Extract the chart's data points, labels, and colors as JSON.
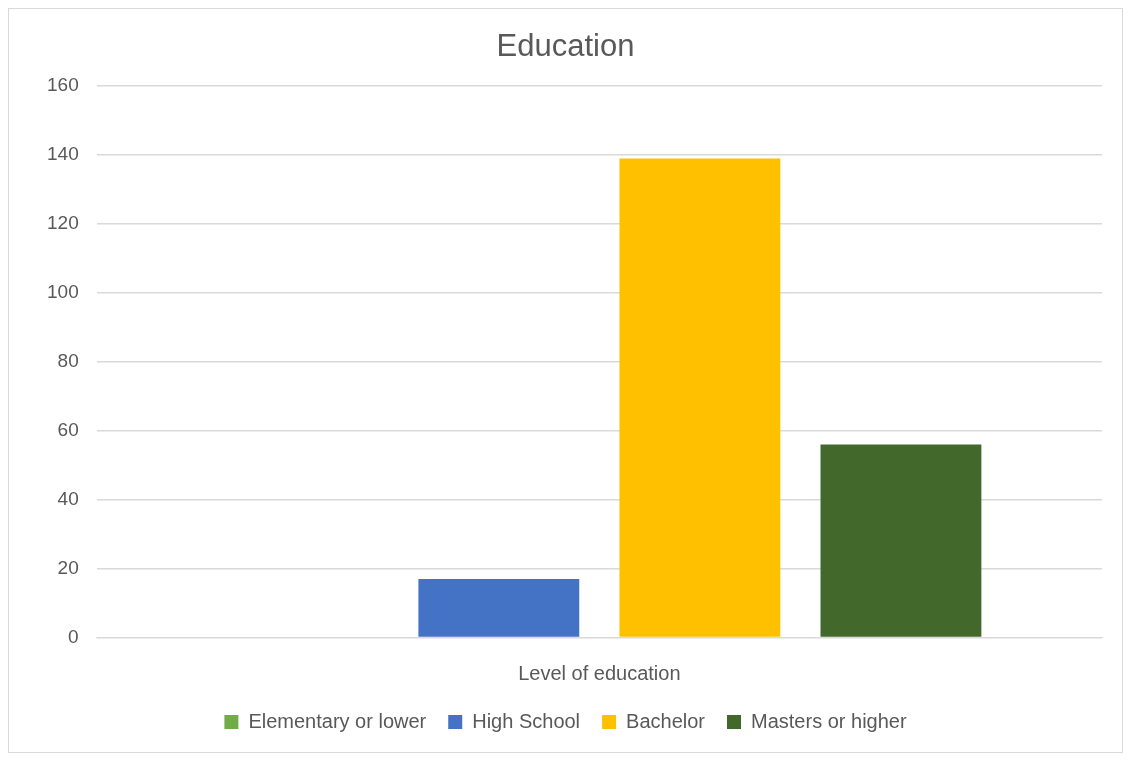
{
  "chart_data": {
    "type": "bar",
    "title": "Education",
    "xlabel": "Level of education",
    "categories": [
      null
    ],
    "series": [
      {
        "name": "Elementary or lower",
        "color": "#70ad47",
        "values": [
          0
        ]
      },
      {
        "name": "High School",
        "color": "#4472c4",
        "values": [
          17
        ]
      },
      {
        "name": "Bachelor",
        "color": "#ffc000",
        "values": [
          139
        ]
      },
      {
        "name": "Masters or higher",
        "color": "#43682b",
        "values": [
          56
        ]
      }
    ],
    "ylim": [
      0,
      160
    ],
    "yticks": [
      0,
      20,
      40,
      60,
      80,
      100,
      120,
      140,
      160
    ],
    "grid": "y",
    "legend": "bottom"
  }
}
